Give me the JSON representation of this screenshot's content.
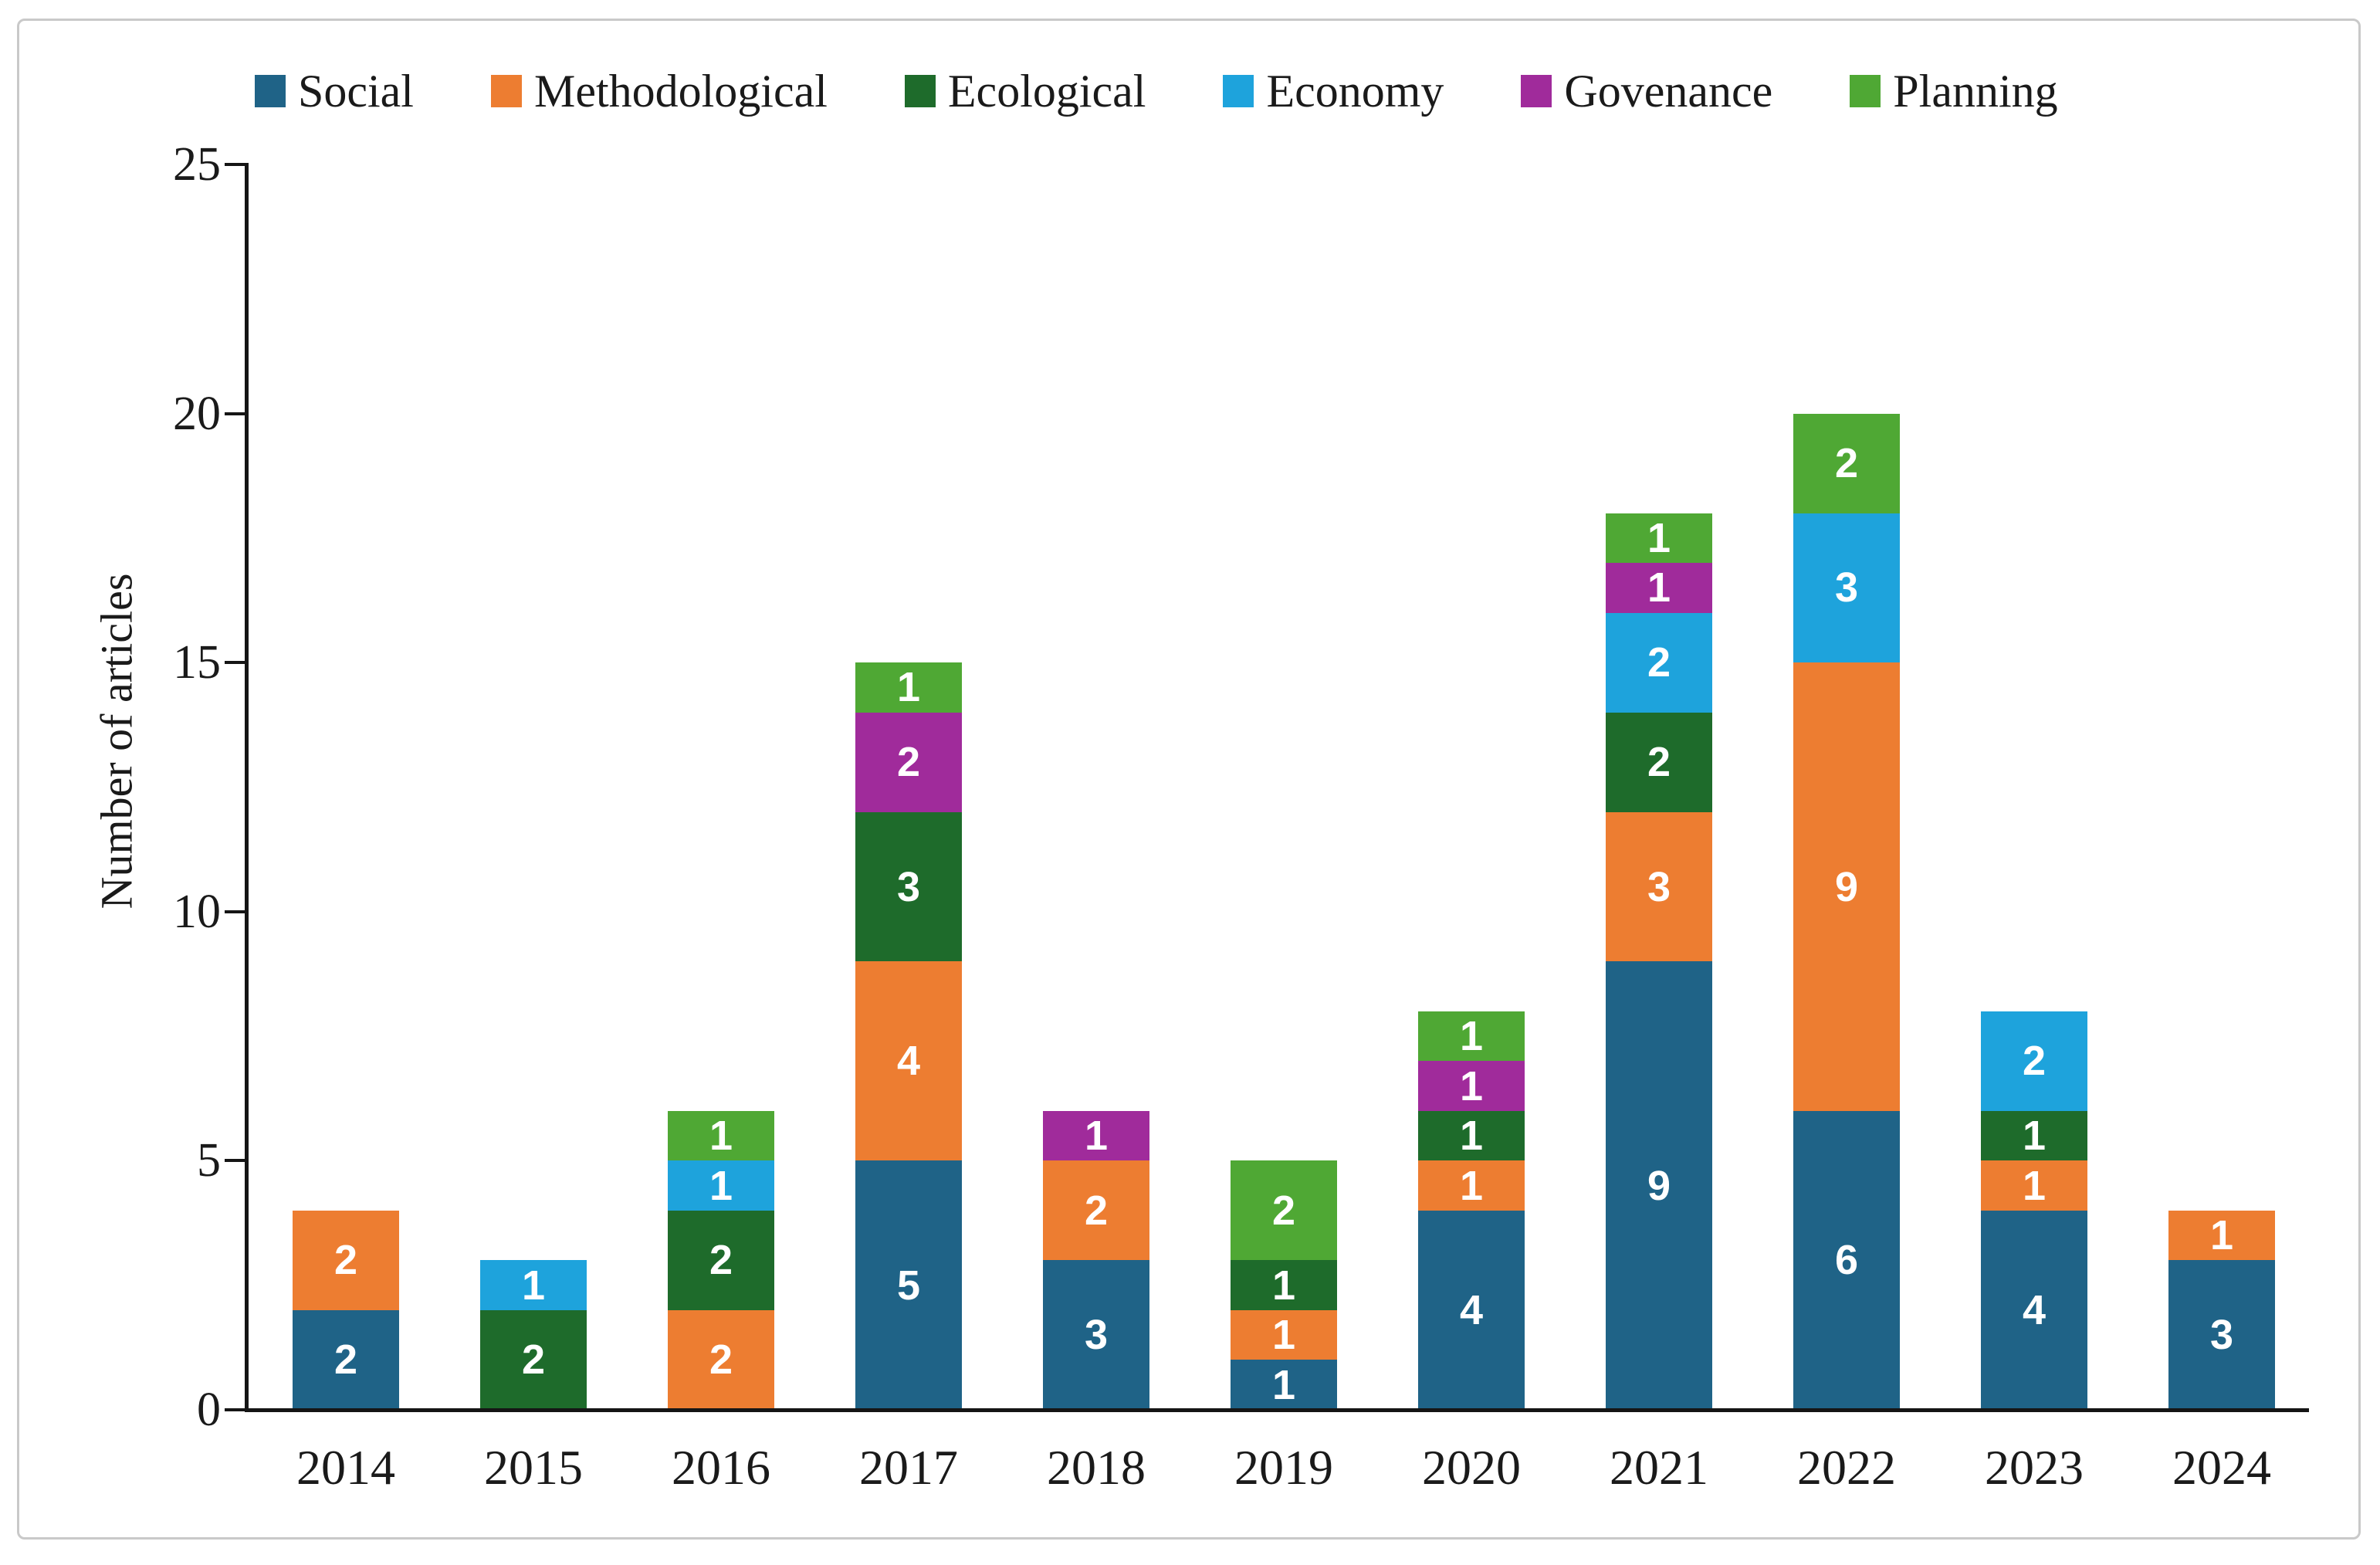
{
  "chart_data": {
    "type": "bar",
    "stacked": true,
    "title": "",
    "xlabel": "",
    "ylabel": "Number of articles",
    "ylim": [
      0,
      25
    ],
    "yticks": [
      0,
      5,
      10,
      15,
      20,
      25
    ],
    "grid": false,
    "legend_position": "top",
    "categories": [
      "2014",
      "2015",
      "2016",
      "2017",
      "2018",
      "2019",
      "2020",
      "2021",
      "2022",
      "2023",
      "2024"
    ],
    "series": [
      {
        "name": "Social",
        "color": "#1F6387",
        "values": [
          2,
          0,
          0,
          5,
          3,
          1,
          4,
          9,
          6,
          4,
          3
        ]
      },
      {
        "name": "Methodological",
        "color": "#ED7D31",
        "values": [
          2,
          0,
          2,
          4,
          2,
          1,
          1,
          3,
          9,
          1,
          1
        ]
      },
      {
        "name": "Ecological",
        "color": "#1E6B2B",
        "values": [
          0,
          2,
          2,
          3,
          0,
          1,
          1,
          2,
          0,
          1,
          0
        ]
      },
      {
        "name": "Economy",
        "color": "#1EA3DC",
        "values": [
          0,
          1,
          1,
          0,
          0,
          0,
          0,
          2,
          3,
          2,
          0
        ]
      },
      {
        "name": "Govenance",
        "color": "#A02B9B",
        "values": [
          0,
          0,
          0,
          2,
          1,
          0,
          1,
          1,
          0,
          0,
          0
        ]
      },
      {
        "name": "Planning",
        "color": "#4FA834",
        "values": [
          0,
          0,
          1,
          1,
          0,
          2,
          1,
          1,
          2,
          0,
          0
        ]
      }
    ],
    "bar_value_labels_color": "#ffffff",
    "axis_color": "#151515",
    "frame_color": "#c9c9c9"
  }
}
